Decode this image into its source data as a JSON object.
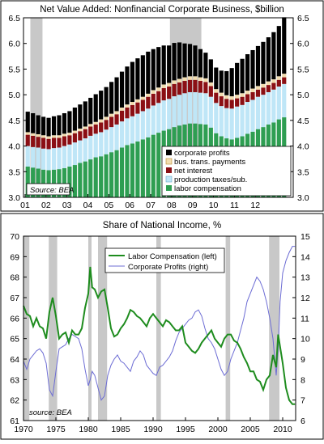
{
  "chart_data": [
    {
      "type": "bar",
      "stacked": true,
      "title": "Net Value Added:  Nonfinancial Corporate Business, $billion",
      "source": "Source: BEA",
      "ylim": [
        3.0,
        6.5
      ],
      "yticks": [
        "3.0",
        "3.5",
        "4.0",
        "4.5",
        "5.0",
        "5.5",
        "6.0",
        "6.5"
      ],
      "xlabels": [
        "01",
        "02",
        "03",
        "04",
        "05",
        "06",
        "07",
        "08",
        "09",
        "10",
        "11",
        "12"
      ],
      "x_start_year": 2001,
      "recessions": [
        [
          2001.25,
          2001.83
        ],
        [
          2007.92,
          2009.42
        ]
      ],
      "colors": {
        "labor": "#2e9e52",
        "production": "#bfe6f7",
        "interest": "#8b0f14",
        "transfers": "#f2ddb0",
        "profits": "#000000",
        "recession": "#c8c8c8"
      },
      "legend": [
        {
          "key": "profits",
          "label": "corporate profits"
        },
        {
          "key": "transfers",
          "label": "bus. trans. payments"
        },
        {
          "key": "interest",
          "label": "net interest"
        },
        {
          "key": "production",
          "label": "production taxes/sub."
        },
        {
          "key": "labor",
          "label": "labor compensation"
        }
      ],
      "series": {
        "labor": [
          3.6,
          3.58,
          3.56,
          3.54,
          3.53,
          3.54,
          3.55,
          3.57,
          3.6,
          3.63,
          3.67,
          3.7,
          3.74,
          3.78,
          3.8,
          3.84,
          3.88,
          3.92,
          3.97,
          4.02,
          4.05,
          4.09,
          4.13,
          4.17,
          4.22,
          4.26,
          4.3,
          4.33,
          4.37,
          4.4,
          4.42,
          4.44,
          4.44,
          4.43,
          4.42,
          4.36,
          4.25,
          4.19,
          4.15,
          4.13,
          4.16,
          4.19,
          4.24,
          4.28,
          4.33,
          4.37,
          4.42,
          4.46,
          4.52,
          4.56
        ],
        "production": [
          0.4,
          0.4,
          0.41,
          0.41,
          0.41,
          0.42,
          0.42,
          0.43,
          0.43,
          0.44,
          0.44,
          0.45,
          0.46,
          0.46,
          0.47,
          0.48,
          0.49,
          0.5,
          0.51,
          0.52,
          0.53,
          0.54,
          0.55,
          0.56,
          0.57,
          0.58,
          0.59,
          0.59,
          0.6,
          0.6,
          0.61,
          0.61,
          0.61,
          0.61,
          0.61,
          0.6,
          0.59,
          0.59,
          0.59,
          0.6,
          0.61,
          0.61,
          0.62,
          0.62,
          0.63,
          0.63,
          0.63,
          0.64,
          0.64,
          0.65
        ],
        "interest": [
          0.22,
          0.22,
          0.21,
          0.21,
          0.2,
          0.2,
          0.19,
          0.19,
          0.18,
          0.18,
          0.18,
          0.18,
          0.18,
          0.18,
          0.19,
          0.19,
          0.2,
          0.2,
          0.21,
          0.21,
          0.22,
          0.22,
          0.22,
          0.23,
          0.23,
          0.23,
          0.24,
          0.24,
          0.24,
          0.24,
          0.24,
          0.24,
          0.24,
          0.23,
          0.22,
          0.21,
          0.2,
          0.19,
          0.18,
          0.17,
          0.16,
          0.16,
          0.15,
          0.15,
          0.14,
          0.14,
          0.14,
          0.13,
          0.13,
          0.13
        ],
        "transfers": [
          0.05,
          0.05,
          0.05,
          0.05,
          0.05,
          0.05,
          0.05,
          0.05,
          0.05,
          0.05,
          0.05,
          0.05,
          0.05,
          0.05,
          0.06,
          0.06,
          0.06,
          0.06,
          0.06,
          0.06,
          0.06,
          0.06,
          0.06,
          0.06,
          0.07,
          0.07,
          0.07,
          0.07,
          0.07,
          0.07,
          0.07,
          0.07,
          0.07,
          0.07,
          0.07,
          0.07,
          0.07,
          0.07,
          0.07,
          0.07,
          0.07,
          0.07,
          0.07,
          0.07,
          0.07,
          0.07,
          0.07,
          0.07,
          0.07,
          0.07
        ],
        "profits": [
          0.4,
          0.39,
          0.37,
          0.36,
          0.36,
          0.37,
          0.39,
          0.4,
          0.42,
          0.45,
          0.47,
          0.49,
          0.51,
          0.54,
          0.56,
          0.58,
          0.62,
          0.66,
          0.7,
          0.74,
          0.78,
          0.8,
          0.81,
          0.82,
          0.8,
          0.79,
          0.76,
          0.73,
          0.73,
          0.71,
          0.66,
          0.63,
          0.6,
          0.55,
          0.5,
          0.45,
          0.42,
          0.43,
          0.47,
          0.55,
          0.62,
          0.67,
          0.71,
          0.75,
          0.78,
          0.82,
          0.86,
          0.92,
          0.98,
          1.1
        ]
      }
    },
    {
      "type": "line",
      "title": "Share of National Income, %",
      "source": "source: BEA",
      "xlim": [
        1970,
        2012
      ],
      "xticks": [
        "1970",
        "1975",
        "1980",
        "1985",
        "1990",
        "1995",
        "2000",
        "2005",
        "2010"
      ],
      "ylim_left": [
        61,
        70
      ],
      "ylim_right": [
        6,
        15
      ],
      "yticks_left": [
        "61",
        "62",
        "63",
        "64",
        "65",
        "66",
        "67",
        "68",
        "69",
        "70"
      ],
      "yticks_right": [
        "6",
        "7",
        "8",
        "9",
        "10",
        "11",
        "12",
        "13",
        "14",
        "15"
      ],
      "recessions": [
        [
          1970.0,
          1970.9
        ],
        [
          1973.9,
          1975.2
        ],
        [
          1980.0,
          1980.5
        ],
        [
          1981.5,
          1982.9
        ],
        [
          1990.5,
          1991.2
        ],
        [
          2001.2,
          2001.9
        ],
        [
          2007.9,
          2009.5
        ]
      ],
      "colors": {
        "labor": "#1e8c1e",
        "profits": "#6c6cd4",
        "recession": "#c8c8c8"
      },
      "legend": [
        {
          "key": "labor",
          "label": "Labor Compensation (left)"
        },
        {
          "key": "profits",
          "label": "Corporate Profits (right)"
        }
      ],
      "series": {
        "labor": {
          "x": [
            1970.0,
            1970.5,
            1971.0,
            1971.5,
            1972.0,
            1972.5,
            1973.0,
            1973.5,
            1974.0,
            1974.5,
            1975.0,
            1975.5,
            1976.0,
            1976.5,
            1977.0,
            1977.5,
            1978.0,
            1978.5,
            1979.0,
            1979.5,
            1980.0,
            1980.3,
            1980.6,
            1981.0,
            1981.5,
            1982.0,
            1982.5,
            1983.0,
            1983.5,
            1984.0,
            1984.5,
            1985.0,
            1985.5,
            1986.0,
            1986.5,
            1987.0,
            1987.5,
            1988.0,
            1988.5,
            1989.0,
            1989.5,
            1990.0,
            1990.5,
            1991.0,
            1991.5,
            1992.0,
            1992.5,
            1993.0,
            1993.5,
            1994.0,
            1994.5,
            1995.0,
            1995.5,
            1996.0,
            1996.5,
            1997.0,
            1997.5,
            1998.0,
            1998.5,
            1999.0,
            1999.5,
            2000.0,
            2000.5,
            2001.0,
            2001.5,
            2002.0,
            2002.5,
            2003.0,
            2003.5,
            2004.0,
            2004.5,
            2005.0,
            2005.5,
            2006.0,
            2006.5,
            2007.0,
            2007.5,
            2008.0,
            2008.5,
            2009.0,
            2009.3,
            2009.6,
            2010.0,
            2010.5,
            2011.0,
            2011.5,
            2011.9
          ],
          "y": [
            66.6,
            66.2,
            66.1,
            65.6,
            66.0,
            65.6,
            65.5,
            65.0,
            66.3,
            67.0,
            66.1,
            65.0,
            65.2,
            65.3,
            64.8,
            65.4,
            65.2,
            65.2,
            65.5,
            66.5,
            67.2,
            68.5,
            67.5,
            67.4,
            67.0,
            67.3,
            67.4,
            66.5,
            65.5,
            65.1,
            65.2,
            65.5,
            65.7,
            66.0,
            66.4,
            66.3,
            66.1,
            66.0,
            65.8,
            65.6,
            66.0,
            66.2,
            66.0,
            65.8,
            65.6,
            65.9,
            65.8,
            65.6,
            65.4,
            65.4,
            65.6,
            64.8,
            64.6,
            64.4,
            64.3,
            64.5,
            64.8,
            65.0,
            65.2,
            65.4,
            65.0,
            64.8,
            64.6,
            65.0,
            65.2,
            65.2,
            64.9,
            64.8,
            64.5,
            64.1,
            63.8,
            63.4,
            63.4,
            63.0,
            62.9,
            62.5,
            63.0,
            63.2,
            64.2,
            63.6,
            65.2,
            64.6,
            63.8,
            62.6,
            62.0,
            61.8,
            61.8
          ]
        },
        "profits": {
          "x": [
            1970.0,
            1970.5,
            1971.0,
            1971.5,
            1972.0,
            1972.5,
            1973.0,
            1973.5,
            1974.0,
            1974.5,
            1975.0,
            1975.5,
            1976.0,
            1976.5,
            1977.0,
            1977.5,
            1978.0,
            1978.5,
            1979.0,
            1979.5,
            1980.0,
            1980.3,
            1980.6,
            1981.0,
            1981.5,
            1982.0,
            1982.5,
            1983.0,
            1983.5,
            1984.0,
            1984.5,
            1985.0,
            1985.5,
            1986.0,
            1986.5,
            1987.0,
            1987.5,
            1988.0,
            1988.5,
            1989.0,
            1989.5,
            1990.0,
            1990.5,
            1991.0,
            1991.5,
            1992.0,
            1992.5,
            1993.0,
            1993.5,
            1994.0,
            1994.5,
            1995.0,
            1995.5,
            1996.0,
            1996.5,
            1997.0,
            1997.5,
            1998.0,
            1998.5,
            1999.0,
            1999.5,
            2000.0,
            2000.5,
            2001.0,
            2001.5,
            2002.0,
            2002.5,
            2003.0,
            2003.5,
            2004.0,
            2004.5,
            2005.0,
            2005.5,
            2006.0,
            2006.5,
            2007.0,
            2007.5,
            2008.0,
            2008.5,
            2009.0,
            2009.3,
            2009.6,
            2010.0,
            2010.5,
            2011.0,
            2011.5,
            2011.9
          ],
          "y": [
            8.9,
            8.5,
            9.0,
            9.2,
            9.4,
            9.5,
            9.3,
            8.8,
            7.5,
            7.2,
            8.4,
            9.5,
            9.6,
            9.7,
            10.0,
            10.2,
            10.1,
            10.0,
            9.5,
            8.5,
            7.7,
            8.0,
            8.4,
            8.2,
            7.6,
            7.0,
            7.2,
            8.2,
            8.7,
            9.0,
            9.2,
            8.9,
            8.8,
            8.6,
            8.4,
            8.9,
            9.1,
            9.4,
            9.2,
            8.7,
            8.5,
            8.3,
            8.2,
            8.6,
            8.7,
            8.9,
            9.1,
            9.4,
            9.9,
            10.3,
            10.5,
            10.7,
            10.9,
            11.0,
            11.3,
            11.4,
            11.1,
            10.5,
            10.0,
            9.8,
            9.5,
            9.0,
            8.5,
            8.2,
            8.4,
            9.0,
            9.4,
            9.8,
            10.4,
            11.0,
            11.8,
            12.2,
            12.6,
            13.0,
            12.8,
            12.4,
            11.8,
            11.0,
            10.0,
            8.2,
            9.5,
            11.8,
            13.2,
            13.8,
            14.2,
            14.5,
            14.5
          ]
        }
      }
    }
  ]
}
